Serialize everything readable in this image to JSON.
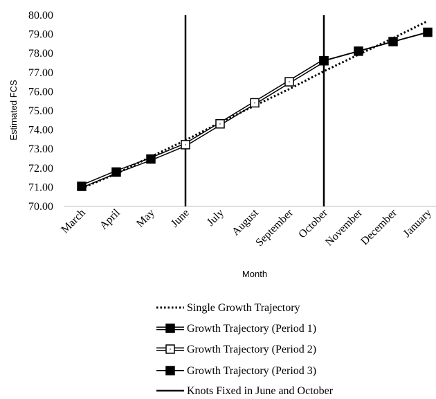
{
  "chart_data": {
    "type": "line",
    "xlabel": "Month",
    "ylabel": "Estimated FCS",
    "categories": [
      "March",
      "April",
      "May",
      "June",
      "July",
      "August",
      "September",
      "October",
      "November",
      "December",
      "January"
    ],
    "y_ticks": [
      "70.00",
      "71.00",
      "72.00",
      "73.00",
      "74.00",
      "75.00",
      "76.00",
      "77.00",
      "78.00",
      "79.00",
      "80.00"
    ],
    "ylim": [
      70,
      80
    ],
    "grid": false,
    "legend_position": "bottom",
    "series": [
      {
        "name": "Single Growth Trajectory",
        "style": "dotted",
        "color": "#000000",
        "values": [
          70.95,
          71.71,
          72.6,
          73.46,
          74.39,
          75.27,
          76.14,
          77.07,
          77.94,
          78.8,
          79.7
        ]
      },
      {
        "name": "Growth Trajectory (Period 1)",
        "style": "double-line-filled-square",
        "color": "#000000",
        "values": [
          71.05,
          71.8,
          72.48,
          73.23,
          null,
          null,
          null,
          null,
          null,
          null,
          null
        ]
      },
      {
        "name": "Growth Trajectory (Period 2)",
        "style": "double-line-open-square",
        "color": "#000000",
        "values": [
          null,
          null,
          null,
          73.23,
          74.32,
          75.42,
          76.52,
          77.62,
          null,
          null,
          null
        ]
      },
      {
        "name": "Growth Trajectory (Period 3)",
        "style": "single-line-filled-square",
        "color": "#000000",
        "values": [
          null,
          null,
          null,
          null,
          null,
          null,
          null,
          77.62,
          78.12,
          78.62,
          79.11
        ]
      }
    ],
    "knots": {
      "name": "Knots Fixed in June and October",
      "at": [
        "June",
        "October"
      ]
    }
  }
}
